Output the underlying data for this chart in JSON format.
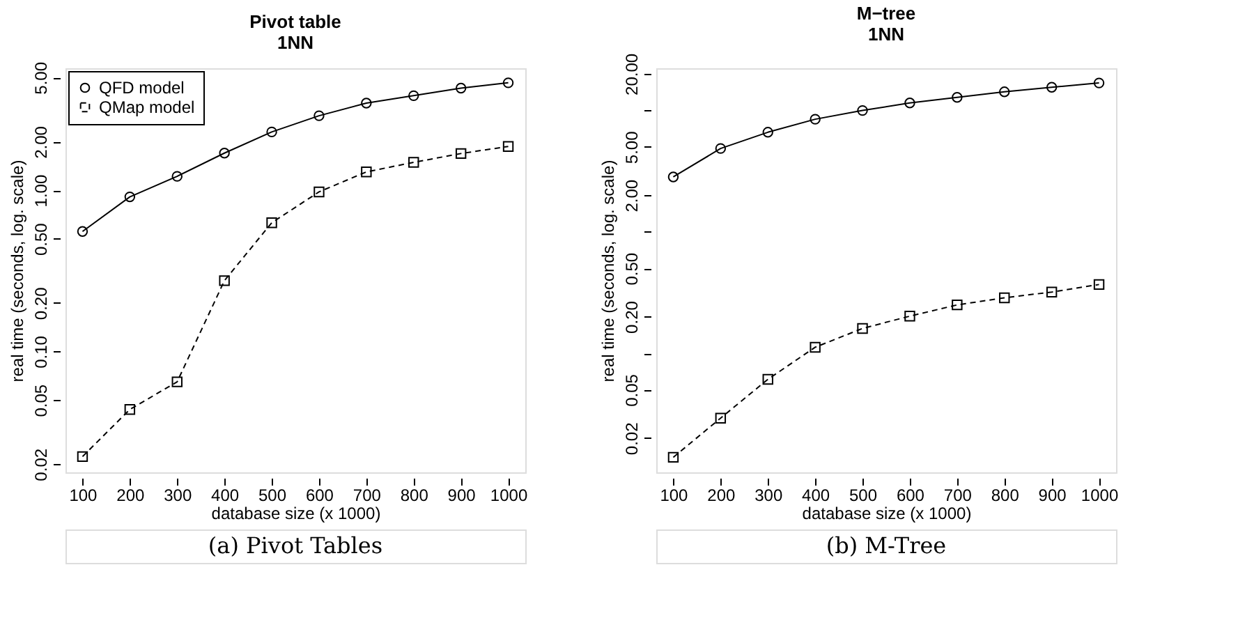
{
  "chart_data": [
    {
      "type": "line",
      "title": "Pivot table",
      "subtitle": "1NN",
      "xlabel": "database size (x 1000)",
      "ylabel": "real time (seconds, log. scale)",
      "x": [
        100,
        200,
        300,
        400,
        500,
        600,
        700,
        800,
        900,
        1000
      ],
      "series": [
        {
          "name": "QFD model",
          "color": "#000000",
          "marker": "circle",
          "line_style": "solid",
          "values": [
            0.555,
            0.91,
            1.22,
            1.7,
            2.3,
            2.9,
            3.47,
            3.86,
            4.3,
            4.64
          ]
        },
        {
          "name": "QMap model",
          "color": "#000000",
          "marker": "square",
          "line_style": "dashed",
          "values": [
            0.0223,
            0.0437,
            0.0648,
            0.275,
            0.629,
            0.977,
            1.3,
            1.49,
            1.69,
            1.87
          ]
        }
      ],
      "xlim": [
        64,
        1036
      ],
      "xticks": [
        100,
        200,
        300,
        400,
        500,
        600,
        700,
        800,
        900,
        1000
      ],
      "ylim": [
        0.0178,
        5.71
      ],
      "yticks": [
        {
          "value": 0.02,
          "label": "0.02"
        },
        {
          "value": 0.05,
          "label": "0.05"
        },
        {
          "value": 0.1,
          "label": "0.10"
        },
        {
          "value": 0.2,
          "label": "0.20"
        },
        {
          "value": 0.5,
          "label": "0.50"
        },
        {
          "value": 1,
          "label": "1.00"
        },
        {
          "value": 2,
          "label": "2.00"
        },
        {
          "value": 5,
          "label": "5.00"
        }
      ],
      "log": "y",
      "grid": false,
      "legend": "top left",
      "annotations": [
        "(a) Pivot Tables"
      ]
    },
    {
      "type": "line",
      "title": "M−tree",
      "subtitle": "1NN",
      "xlabel": "database size (x 1000)",
      "ylabel": "real time (seconds, log. scale)",
      "x": [
        100,
        200,
        300,
        400,
        500,
        600,
        700,
        800,
        900,
        1000
      ],
      "series": [
        {
          "name": "QFD model",
          "color": "#000000",
          "marker": "circle",
          "line_style": "solid",
          "values": [
            2.83,
            4.85,
            6.6,
            8.45,
            9.97,
            11.5,
            12.8,
            14.2,
            15.5,
            16.8
          ]
        },
        {
          "name": "QMap model",
          "color": "#000000",
          "marker": "square",
          "line_style": "dashed",
          "values": [
            0.0139,
            0.0292,
            0.061,
            0.112,
            0.16,
            0.202,
            0.25,
            0.286,
            0.319,
            0.368
          ]
        }
      ],
      "xlim": [
        64,
        1036
      ],
      "xticks": [
        100,
        200,
        300,
        400,
        500,
        600,
        700,
        800,
        900,
        1000
      ],
      "ylim": [
        0.01045,
        22.2
      ],
      "yticks": [
        {
          "value": 0.02,
          "label": "0.02"
        },
        {
          "value": 0.05,
          "label": "0.05"
        },
        {
          "value": 0.1,
          "label": null
        },
        {
          "value": 0.2,
          "label": "0.20"
        },
        {
          "value": 0.5,
          "label": "0.50"
        },
        {
          "value": 1,
          "label": null
        },
        {
          "value": 2,
          "label": "2.00"
        },
        {
          "value": 5,
          "label": "5.00"
        },
        {
          "value": 10,
          "label": null
        },
        {
          "value": 20,
          "label": "20.00"
        }
      ],
      "log": "y",
      "grid": false,
      "legend": "top left",
      "annotations": [
        "(b) M-Tree"
      ]
    }
  ]
}
